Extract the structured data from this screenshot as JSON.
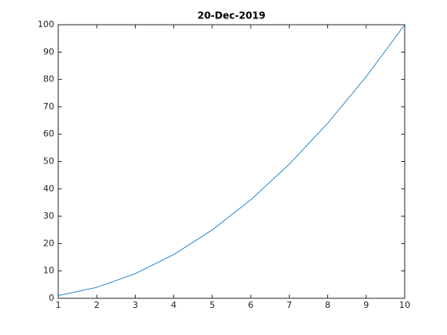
{
  "chart_data": {
    "type": "line",
    "title": "20-Dec-2019",
    "x": [
      1,
      2,
      3,
      4,
      5,
      6,
      7,
      8,
      9,
      10
    ],
    "series": [
      {
        "color": "#0072bd",
        "values": [
          1,
          4,
          9,
          16,
          25,
          36,
          49,
          64,
          81,
          100
        ]
      }
    ],
    "xlim": [
      1,
      10
    ],
    "xticks": [
      1,
      2,
      3,
      4,
      5,
      6,
      7,
      8,
      9,
      10
    ],
    "ylim": [
      0,
      100
    ],
    "yticks": [
      0,
      10,
      20,
      30,
      40,
      50,
      60,
      70,
      80,
      90,
      100
    ],
    "grid": false
  }
}
